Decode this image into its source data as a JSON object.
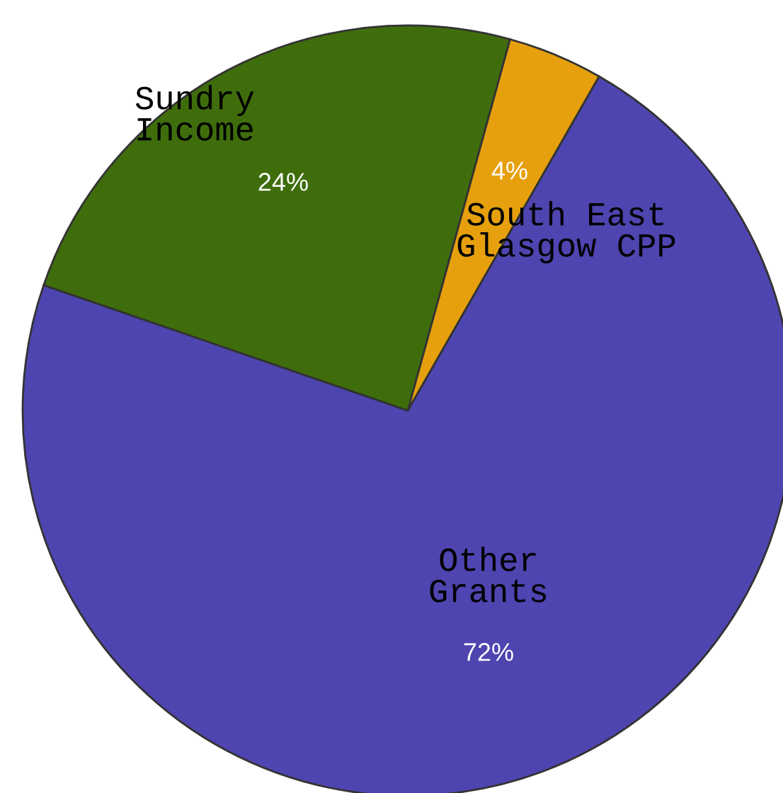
{
  "chart_data": {
    "type": "pie",
    "categories": [
      "Sundry Income",
      "South East Glasgow CPP",
      "Other Grants"
    ],
    "values": [
      24,
      4,
      72
    ],
    "colors": [
      "#3f6d0c",
      "#e6a00d",
      "#4e45b0"
    ],
    "value_labels": [
      "24%",
      "4%",
      "72%"
    ]
  }
}
